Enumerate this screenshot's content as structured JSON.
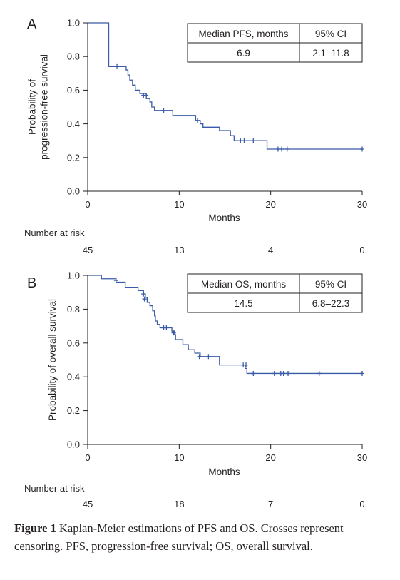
{
  "chart_data": [
    {
      "type": "line",
      "subtype": "kaplan-meier",
      "panel": "A",
      "ylabel": [
        "Probability of",
        "progression-free survival"
      ],
      "xlabel": "Months",
      "xlim": [
        0,
        30
      ],
      "ylim": [
        0,
        1
      ],
      "xticks": [
        "0",
        "10",
        "20",
        "30"
      ],
      "yticks": [
        "0.0",
        "0.2",
        "0.4",
        "0.6",
        "0.8",
        "1.0"
      ],
      "steps": [
        [
          0,
          1.0
        ],
        [
          2.3,
          0.74
        ],
        [
          4.2,
          0.72
        ],
        [
          4.4,
          0.69
        ],
        [
          4.6,
          0.66
        ],
        [
          4.9,
          0.63
        ],
        [
          5.2,
          0.6
        ],
        [
          5.7,
          0.58
        ],
        [
          6.4,
          0.55
        ],
        [
          6.8,
          0.53
        ],
        [
          7.0,
          0.5
        ],
        [
          7.3,
          0.48
        ],
        [
          9.3,
          0.45
        ],
        [
          11.8,
          0.42
        ],
        [
          12.3,
          0.4
        ],
        [
          12.6,
          0.38
        ],
        [
          14.4,
          0.36
        ],
        [
          15.6,
          0.33
        ],
        [
          16.0,
          0.3
        ],
        [
          19.6,
          0.25
        ],
        [
          30.0,
          0.25
        ]
      ],
      "censored": [
        [
          3.2,
          0.74
        ],
        [
          6.1,
          0.57
        ],
        [
          6.4,
          0.57
        ],
        [
          8.3,
          0.48
        ],
        [
          12.0,
          0.42
        ],
        [
          16.7,
          0.3
        ],
        [
          17.1,
          0.3
        ],
        [
          18.1,
          0.3
        ],
        [
          20.8,
          0.25
        ],
        [
          21.2,
          0.25
        ],
        [
          21.8,
          0.25
        ],
        [
          30.0,
          0.25
        ]
      ],
      "table": {
        "headers": [
          "Median PFS, months",
          "95% CI"
        ],
        "values": [
          "6.9",
          "2.1–11.8"
        ]
      },
      "risk_label": "Number at risk",
      "risk_numbers": [
        "45",
        "13",
        "4",
        "0"
      ]
    },
    {
      "type": "line",
      "subtype": "kaplan-meier",
      "panel": "B",
      "ylabel": [
        "Probability of overall survival"
      ],
      "xlabel": "Months",
      "xlim": [
        0,
        30
      ],
      "ylim": [
        0,
        1
      ],
      "xticks": [
        "0",
        "10",
        "20",
        "30"
      ],
      "yticks": [
        "0.0",
        "0.2",
        "0.4",
        "0.6",
        "0.8",
        "1.0"
      ],
      "steps": [
        [
          0,
          1.0
        ],
        [
          1.5,
          0.98
        ],
        [
          3.1,
          0.96
        ],
        [
          4.1,
          0.93
        ],
        [
          5.5,
          0.91
        ],
        [
          6.1,
          0.89
        ],
        [
          6.3,
          0.87
        ],
        [
          6.5,
          0.84
        ],
        [
          6.8,
          0.82
        ],
        [
          7.1,
          0.79
        ],
        [
          7.3,
          0.76
        ],
        [
          7.4,
          0.73
        ],
        [
          7.6,
          0.71
        ],
        [
          7.9,
          0.69
        ],
        [
          9.2,
          0.67
        ],
        [
          9.5,
          0.65
        ],
        [
          9.6,
          0.62
        ],
        [
          10.4,
          0.59
        ],
        [
          11.0,
          0.56
        ],
        [
          11.7,
          0.54
        ],
        [
          12.3,
          0.52
        ],
        [
          14.4,
          0.47
        ],
        [
          17.2,
          0.45
        ],
        [
          17.4,
          0.42
        ],
        [
          30.0,
          0.42
        ]
      ],
      "censored": [
        [
          3.1,
          0.97
        ],
        [
          6.1,
          0.89
        ],
        [
          6.2,
          0.86
        ],
        [
          8.3,
          0.69
        ],
        [
          8.6,
          0.69
        ],
        [
          9.4,
          0.66
        ],
        [
          12.2,
          0.52
        ],
        [
          13.2,
          0.52
        ],
        [
          17.0,
          0.47
        ],
        [
          17.3,
          0.47
        ],
        [
          18.1,
          0.42
        ],
        [
          20.4,
          0.42
        ],
        [
          21.1,
          0.42
        ],
        [
          21.4,
          0.42
        ],
        [
          21.9,
          0.42
        ],
        [
          25.3,
          0.42
        ],
        [
          30.0,
          0.42
        ]
      ],
      "table": {
        "headers": [
          "Median OS, months",
          "95% CI"
        ],
        "values": [
          "14.5",
          "6.8–22.3"
        ]
      },
      "risk_label": "Number at risk",
      "risk_numbers": [
        "45",
        "18",
        "7",
        "0"
      ]
    }
  ],
  "caption": {
    "label": "Figure 1",
    "text": "Kaplan-Meier estimations of PFS and OS. Crosses represent censoring. PFS, progression-free survival; OS, overall survival."
  },
  "colors": {
    "curve": "#3a5ba8",
    "axis": "#231f20"
  }
}
